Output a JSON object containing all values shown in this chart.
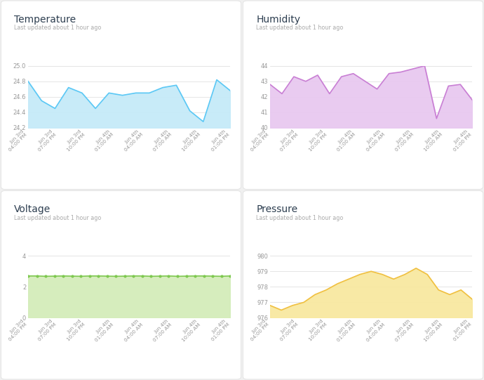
{
  "background_color": "#f0f0f0",
  "panel_color": "#ffffff",
  "subtitle": "Last updated about 1 hour ago",
  "subtitle_color": "#aaaaaa",
  "title_color": "#2d3e50",
  "tick_color": "#999999",
  "grid_color": "#e0e0e0",
  "x_labels": [
    "Jun 3rd\n04:00 PM",
    "Jun 3rd\n07:00 PM",
    "Jun 3rd\n10:00 PM",
    "Jun 4th\n01:00 AM",
    "Jun 4th\n04:00 AM",
    "Jun 4th\n07:00 AM",
    "Jun 4th\n10:00 AM",
    "Jun 4th\n01:00 PM"
  ],
  "temperature": {
    "title": "Temperature",
    "line_color": "#5bc8f5",
    "fill_color": "#c5eaf8",
    "ylim": [
      24.2,
      25.0
    ],
    "yticks": [
      24.2,
      24.4,
      24.6,
      24.8,
      25.0
    ],
    "values": [
      24.8,
      24.55,
      24.45,
      24.72,
      24.65,
      24.45,
      24.65,
      24.62,
      24.65,
      24.65,
      24.72,
      24.75,
      24.42,
      24.28,
      24.82,
      24.68
    ]
  },
  "humidity": {
    "title": "Humidity",
    "line_color": "#c97fd4",
    "fill_color": "#e8c9f0",
    "ylim": [
      40,
      44
    ],
    "yticks": [
      40,
      41,
      42,
      43,
      44
    ],
    "values": [
      42.8,
      42.2,
      43.3,
      43.0,
      43.4,
      42.2,
      43.3,
      43.5,
      43.0,
      42.5,
      43.5,
      43.6,
      43.8,
      44.0,
      40.6,
      42.7,
      42.8,
      41.8
    ]
  },
  "voltage": {
    "title": "Voltage",
    "line_color": "#7ec850",
    "fill_color": "#d4edba",
    "ylim": [
      0,
      4
    ],
    "yticks": [
      0,
      2,
      4
    ],
    "values": [
      2.7,
      2.7,
      2.68,
      2.69,
      2.7,
      2.69,
      2.68,
      2.7,
      2.7,
      2.69,
      2.68,
      2.69,
      2.7,
      2.7,
      2.68,
      2.69,
      2.7,
      2.68,
      2.69,
      2.7,
      2.7,
      2.69,
      2.68,
      2.7
    ]
  },
  "pressure": {
    "title": "Pressure",
    "line_color": "#f0c040",
    "fill_color": "#f8e8a0",
    "ylim": [
      976,
      980
    ],
    "yticks": [
      976,
      977,
      978,
      979,
      980
    ],
    "values": [
      976.8,
      976.5,
      976.8,
      977.0,
      977.5,
      977.8,
      978.2,
      978.5,
      978.8,
      979.0,
      978.8,
      978.5,
      978.8,
      979.2,
      978.8,
      977.8,
      977.5,
      977.8,
      977.2
    ]
  }
}
